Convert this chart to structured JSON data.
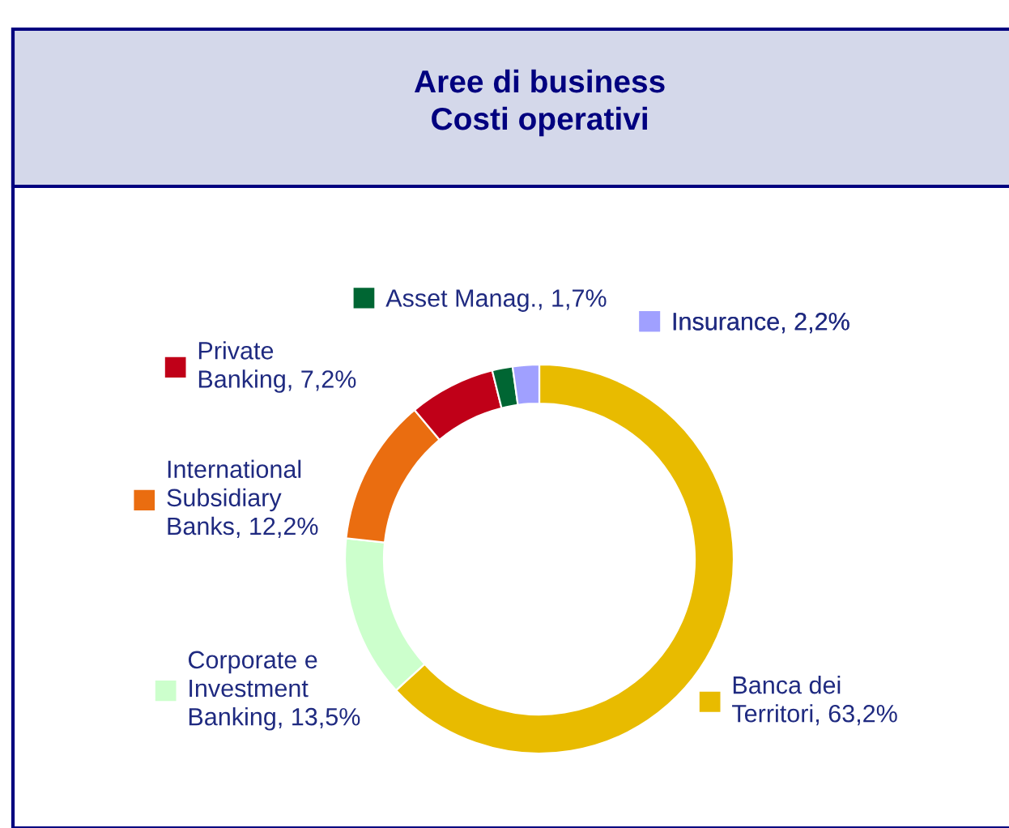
{
  "chart_data": {
    "type": "donut",
    "title": "Aree di business",
    "subtitle": "Costi operativi",
    "categories": [
      "Banca dei\nTerritori",
      "Corporate e\nInvestment\nBanking",
      "International\nSubsidiary\nBanks",
      "Private\nBanking",
      "Asset Manag.",
      "Insurance"
    ],
    "values": [
      63.2,
      13.5,
      12.2,
      7.2,
      1.7,
      2.2
    ],
    "value_labels": [
      "63,2%",
      "13,5%",
      "12,2%",
      "7,2%",
      "1,7%",
      "2,2%"
    ],
    "colors": [
      "#e8bb00",
      "#ccffcc",
      "#ea6d10",
      "#c00018",
      "#006633",
      "#a0a0ff"
    ],
    "legend": "left"
  }
}
